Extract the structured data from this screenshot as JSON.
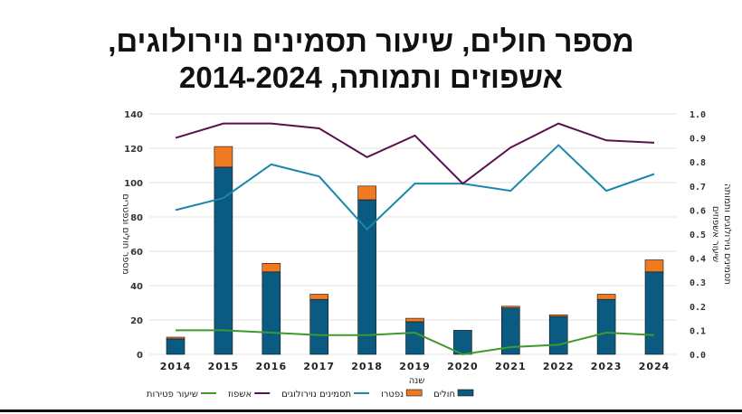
{
  "chart_data": {
    "type": "bar",
    "title": [
      "מספר חולים, שיעור תסמינים נוירולוגים,",
      "אשפוזים ותמותה, 2014-2024"
    ],
    "xlabel": "שנה",
    "ylabel": "מספר חולים ונפטרים",
    "y2label": [
      "שיעור אשפוזים",
      "תסמינים נוירולוגים ותמותה"
    ],
    "categories": [
      "2014",
      "2015",
      "2016",
      "2017",
      "2018",
      "2019",
      "2020",
      "2021",
      "2022",
      "2023",
      "2024"
    ],
    "ylim": [
      0,
      140
    ],
    "yticks": [
      "0",
      "20",
      "40",
      "60",
      "80",
      "100",
      "120",
      "140"
    ],
    "y2lim": [
      0,
      1.0
    ],
    "y2ticks": [
      "0.0",
      "0.1",
      "0.2",
      "0.3",
      "0.4",
      "0.5",
      "0.6",
      "0.7",
      "0.8",
      "0.9",
      "1.0"
    ],
    "grid": true,
    "legend_position": "bottom",
    "series": [
      {
        "name": "חולים",
        "kind": "bar",
        "axis": "left",
        "color": "#0b5a82",
        "values": [
          9,
          109,
          48,
          32,
          90,
          19,
          14,
          27,
          22,
          32,
          48
        ]
      },
      {
        "name": "נפטרו",
        "kind": "bar",
        "axis": "left",
        "color": "#f07a22",
        "values": [
          1,
          12,
          5,
          3,
          8,
          2,
          0,
          1,
          1,
          3,
          7
        ]
      },
      {
        "name": "תסמינים נוירולוגים",
        "kind": "line",
        "axis": "right",
        "color": "#1a86ad",
        "values": [
          0.6,
          0.65,
          0.79,
          0.74,
          0.52,
          0.71,
          0.71,
          0.68,
          0.87,
          0.68,
          0.75
        ]
      },
      {
        "name": "אשפוז",
        "kind": "line",
        "axis": "right",
        "color": "#5a1050",
        "values": [
          0.9,
          0.96,
          0.96,
          0.94,
          0.82,
          0.91,
          0.71,
          0.86,
          0.96,
          0.89,
          0.88
        ]
      },
      {
        "name": "שיעור פטירות",
        "kind": "line",
        "axis": "right",
        "color": "#3f9a2a",
        "values": [
          0.1,
          0.1,
          0.09,
          0.08,
          0.08,
          0.09,
          0.0,
          0.03,
          0.04,
          0.09,
          0.08
        ]
      }
    ]
  }
}
